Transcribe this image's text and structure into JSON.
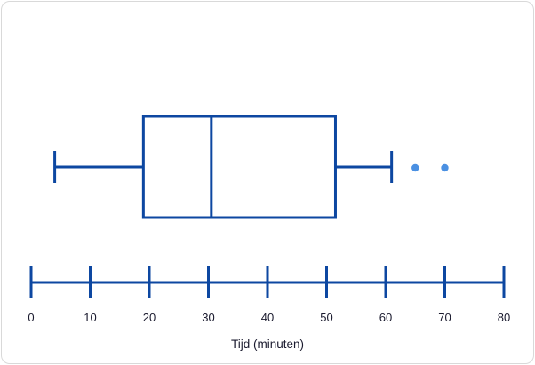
{
  "chart_data": {
    "type": "boxplot",
    "xlabel": "Tijd (minuten)",
    "xlim": [
      0,
      80
    ],
    "ticks": [
      0,
      10,
      20,
      30,
      40,
      50,
      60,
      70,
      80
    ],
    "tick_labels": [
      "0",
      "10",
      "20",
      "30",
      "40",
      "50",
      "60",
      "70",
      "80"
    ],
    "box": {
      "whisker_low": 4,
      "q1": 19,
      "median": 30.5,
      "q3": 51.5,
      "whisker_high": 61
    },
    "outliers": [
      65,
      70
    ],
    "colors": {
      "box_stroke": "#0d47a1",
      "outlier_fill": "#4a90e2",
      "text": "#1a1a2e"
    }
  }
}
